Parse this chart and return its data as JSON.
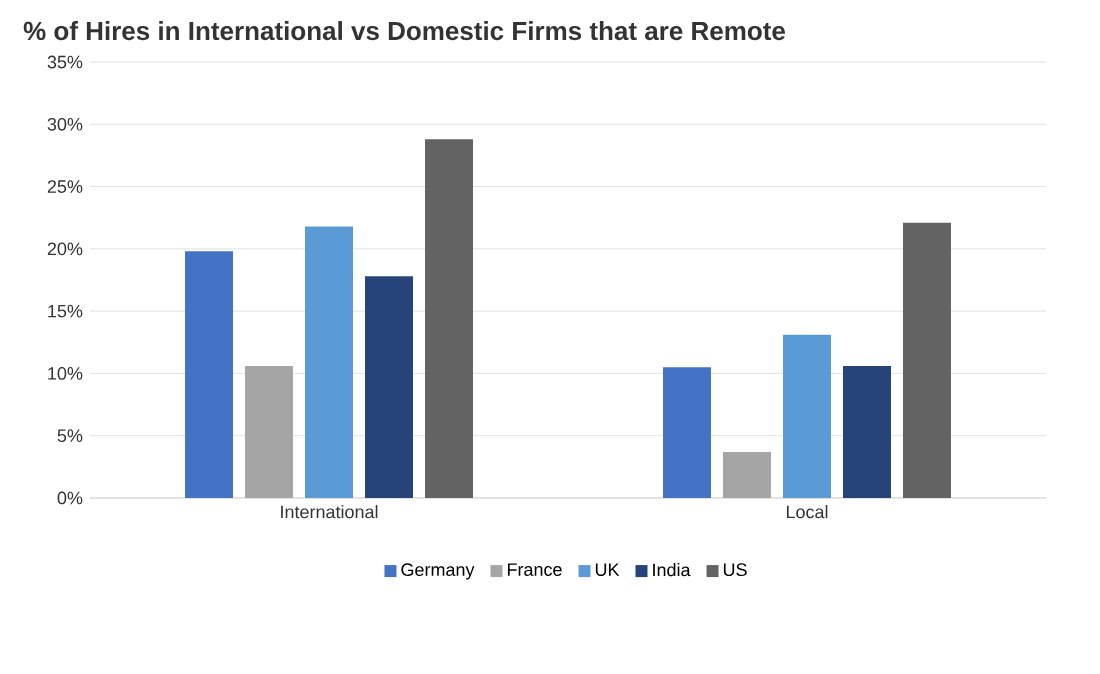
{
  "chart_data": {
    "type": "bar",
    "title": "% of Hires in International vs Domestic Firms that are Remote",
    "categories": [
      "International",
      "Local"
    ],
    "series": [
      {
        "name": "Germany",
        "color": "#4472c4",
        "values": [
          19.8,
          10.5
        ]
      },
      {
        "name": "France",
        "color": "#a5a5a5",
        "values": [
          10.6,
          3.7
        ]
      },
      {
        "name": "UK",
        "color": "#5b9bd5",
        "values": [
          21.8,
          13.1
        ]
      },
      {
        "name": "India",
        "color": "#264478",
        "values": [
          17.8,
          10.6
        ]
      },
      {
        "name": "US",
        "color": "#636363",
        "values": [
          28.8,
          22.1
        ]
      }
    ],
    "ylim": [
      0,
      35
    ],
    "yticks": [
      {
        "value": 0,
        "label": "0%"
      },
      {
        "value": 5,
        "label": "5%"
      },
      {
        "value": 10,
        "label": "10%"
      },
      {
        "value": 15,
        "label": "15%"
      },
      {
        "value": 20,
        "label": "20%"
      },
      {
        "value": 25,
        "label": "25%"
      },
      {
        "value": 30,
        "label": "30%"
      },
      {
        "value": 35,
        "label": "35%"
      }
    ],
    "grid": "y",
    "legend": "bottom"
  }
}
